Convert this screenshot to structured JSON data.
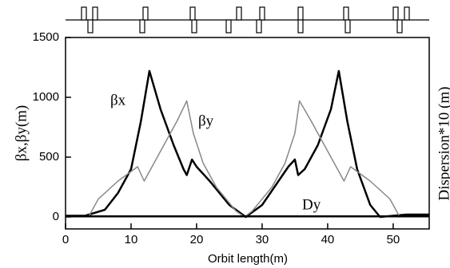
{
  "chart_data": {
    "type": "line",
    "xlabel": "Orbit length(m)",
    "ylabel": "βx,βy(m)",
    "y2label": "Dispersion*10 (m)",
    "annotations": [
      "βx",
      "βy",
      "Dy"
    ],
    "xlim": [
      0,
      55.5
    ],
    "ylim": [
      -100,
      1500
    ],
    "xticks": [
      0,
      10,
      20,
      30,
      40,
      50
    ],
    "yticks": [
      0,
      500,
      1000,
      1500
    ],
    "series": [
      {
        "name": "βx",
        "color": "#000000",
        "x": [
          0,
          3,
          6,
          8,
          10,
          11.5,
          12.8,
          14.5,
          16.5,
          18,
          18.5,
          19.3,
          20,
          22,
          25,
          27.5,
          30,
          32.5,
          34,
          35,
          35.5,
          36.5,
          38.5,
          40.5,
          41.7,
          43,
          44.5,
          46.5,
          48,
          52,
          55.5
        ],
        "values": [
          10,
          10,
          60,
          200,
          400,
          800,
          1220,
          900,
          600,
          400,
          350,
          480,
          420,
          300,
          100,
          0,
          100,
          300,
          420,
          480,
          350,
          400,
          600,
          900,
          1220,
          800,
          400,
          100,
          0,
          20,
          20
        ]
      },
      {
        "name": "βy",
        "color": "#888888",
        "x": [
          3.5,
          5,
          8,
          11,
          12,
          14,
          17,
          18.5,
          19.5,
          21,
          23,
          26,
          27.3,
          28.5,
          31.5,
          33.5,
          35,
          35.7,
          37.5,
          40.5,
          42.5,
          43.5,
          46.5,
          49.5,
          51
        ],
        "values": [
          0,
          150,
          300,
          420,
          300,
          500,
          800,
          970,
          700,
          450,
          250,
          50,
          0,
          50,
          250,
          450,
          700,
          970,
          800,
          500,
          300,
          420,
          300,
          150,
          0
        ]
      },
      {
        "name": "Dy",
        "color": "#000000",
        "x": [
          0,
          55.5
        ],
        "values": [
          5,
          5
        ]
      }
    ]
  }
}
